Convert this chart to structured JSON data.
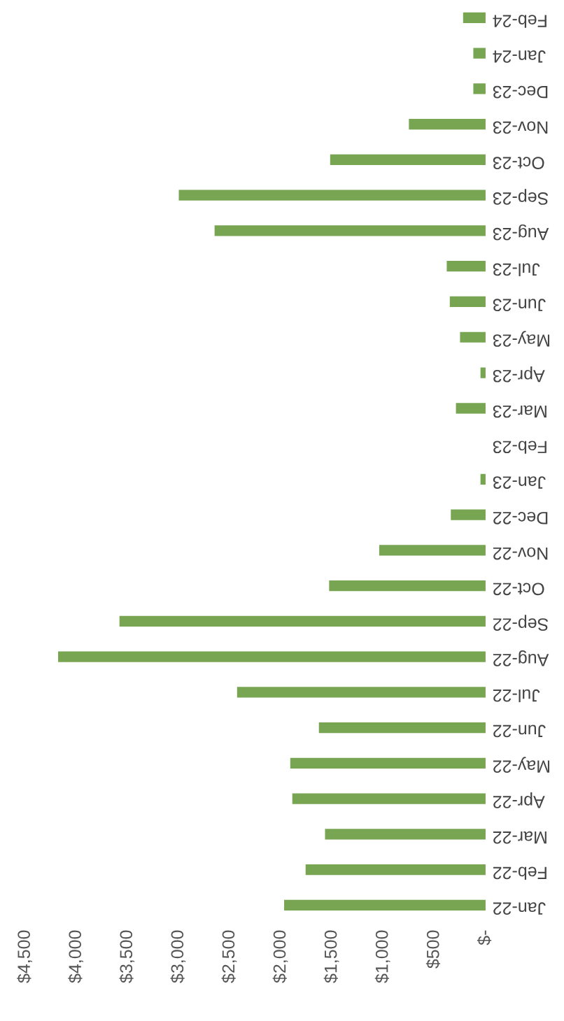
{
  "chart_data": {
    "type": "bar",
    "orientation": "horizontal",
    "categories": [
      "Feb-24",
      "Jan-24",
      "Dec-23",
      "Nov-23",
      "Oct-23",
      "Sep-23",
      "Aug-23",
      "Jul-23",
      "Jun-23",
      "May-23",
      "Apr-23",
      "Mar-23",
      "Feb-23",
      "Jan-23",
      "Dec-22",
      "Nov-22",
      "Oct-22",
      "Sep-22",
      "Aug-22",
      "Jul-22",
      "Jun-22",
      "May-22",
      "Apr-22",
      "Mar-22",
      "Feb-22",
      "Jan-22"
    ],
    "values": [
      220,
      120,
      120,
      750,
      1520,
      3000,
      2650,
      380,
      350,
      250,
      50,
      290,
      0,
      50,
      340,
      1040,
      1530,
      3580,
      4180,
      2430,
      1630,
      1910,
      1890,
      1570,
      1760,
      1970
    ],
    "color": "#77a551",
    "xlim": [
      4500,
      0
    ],
    "xticks": [
      {
        "value": 4500,
        "label": "$4,500"
      },
      {
        "value": 4000,
        "label": "$4,000"
      },
      {
        "value": 3500,
        "label": "$3,500"
      },
      {
        "value": 3000,
        "label": "$3,000"
      },
      {
        "value": 2500,
        "label": "$2,500"
      },
      {
        "value": 2000,
        "label": "$2,000"
      },
      {
        "value": 1500,
        "label": "$1,500"
      },
      {
        "value": 1000,
        "label": "$1,000"
      },
      {
        "value": 500,
        "label": "$500"
      },
      {
        "value": 0,
        "label": "$-"
      }
    ],
    "grid": false
  }
}
